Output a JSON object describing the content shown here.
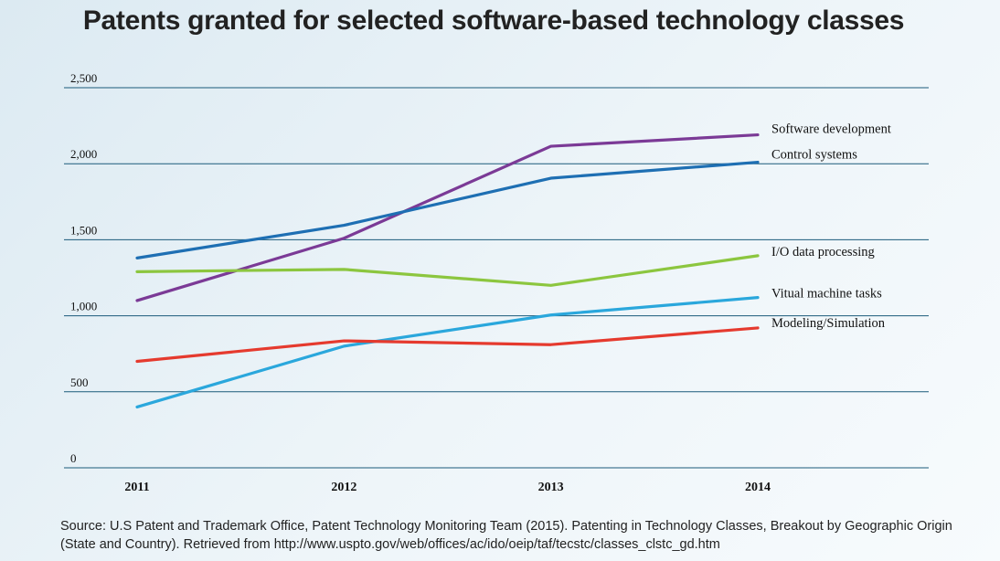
{
  "chart_data": {
    "type": "line",
    "title": "Patents granted for selected software-based technology classes",
    "categories": [
      "2011",
      "2012",
      "2013",
      "2014"
    ],
    "ylim": [
      0,
      2500
    ],
    "yticks": [
      "0",
      "500",
      "1,000",
      "1,500",
      "2,000",
      "2,500"
    ],
    "ytick_values": [
      0,
      500,
      1000,
      1500,
      2000,
      2500
    ],
    "grid": true,
    "legend": "inline-right",
    "series": [
      {
        "name": "Software development",
        "values": [
          1100,
          1510,
          2115,
          2190
        ],
        "color": "#7b3a96"
      },
      {
        "name": "Control systems",
        "values": [
          1380,
          1595,
          1905,
          2010
        ],
        "color": "#1e6fb3"
      },
      {
        "name": "I/O data processing",
        "values": [
          1290,
          1305,
          1200,
          1395
        ],
        "color": "#8cc63f"
      },
      {
        "name": "Vitual machine tasks",
        "values": [
          400,
          800,
          1005,
          1120
        ],
        "color": "#2aa7dc"
      },
      {
        "name": "Modeling/Simulation",
        "values": [
          700,
          835,
          810,
          920
        ],
        "color": "#e53a2e"
      }
    ]
  },
  "source": "Source: U.S Patent and Trademark Office, Patent Technology Monitoring Team (2015). Patenting in Technology Classes, Breakout by Geographic Origin (State and Country). Retrieved from http://www.uspto.gov/web/offices/ac/ido/oeip/taf/tecstc/classes_clstc_gd.htm",
  "gridline_color": "#1a5a7a"
}
